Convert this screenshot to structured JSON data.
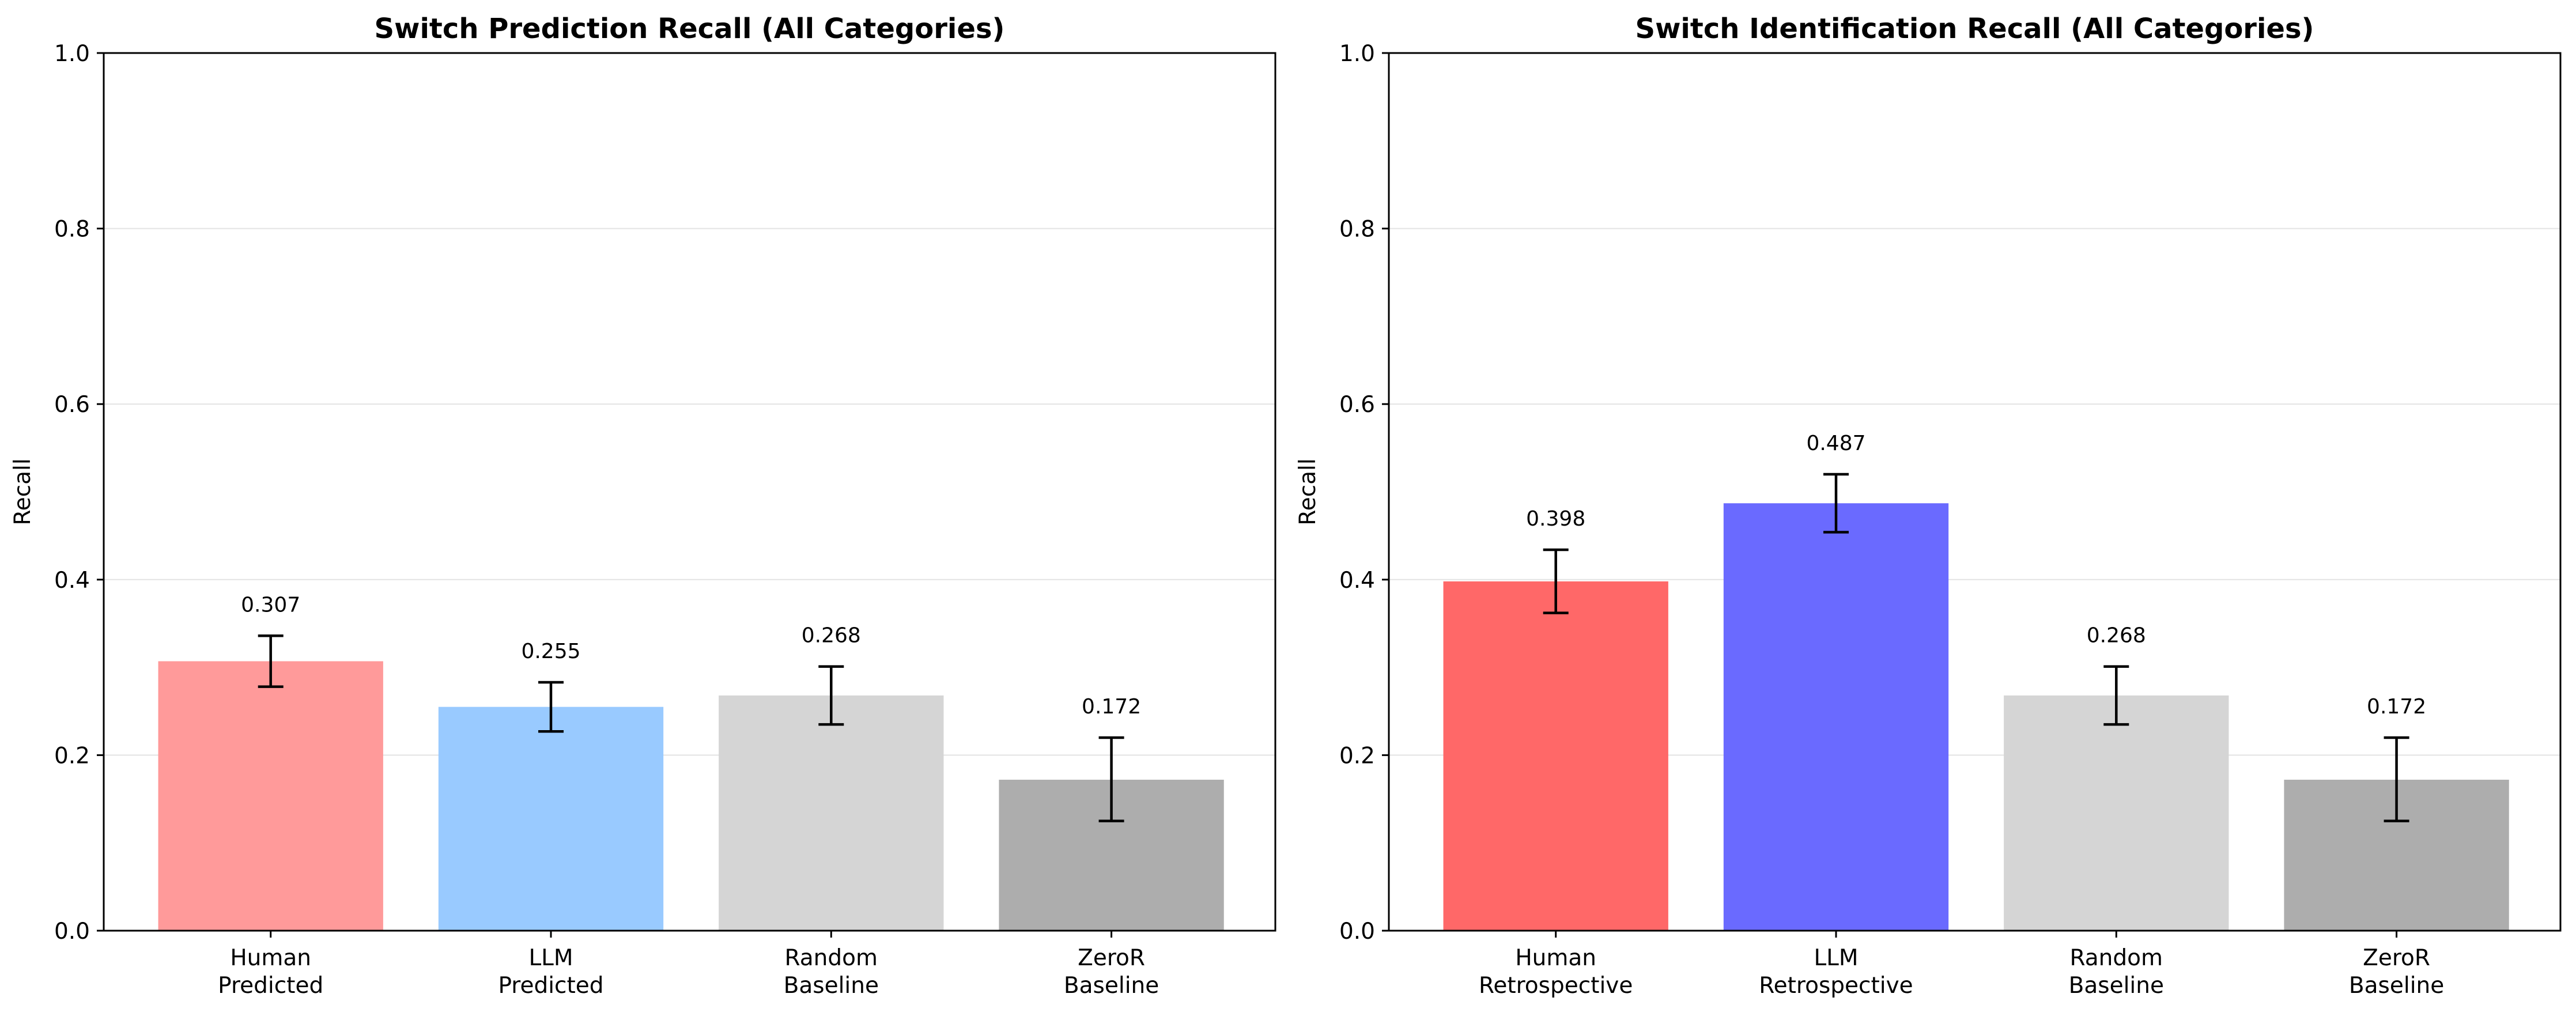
{
  "chart_data": [
    {
      "type": "bar",
      "title": "Switch Prediction Recall (All Categories)",
      "xlabel": "",
      "ylabel": "Recall",
      "ylim": [
        0,
        1.0
      ],
      "yticks": [
        "0.0",
        "0.2",
        "0.4",
        "0.6",
        "0.8",
        "1.0"
      ],
      "grid": "horizontal",
      "categories": [
        [
          "Human",
          "Predicted"
        ],
        [
          "LLM",
          "Predicted"
        ],
        [
          "Random",
          "Baseline"
        ],
        [
          "ZeroR",
          "Baseline"
        ]
      ],
      "values": [
        0.307,
        0.255,
        0.268,
        0.172
      ],
      "value_labels": [
        "0.307",
        "0.255",
        "0.268",
        "0.172"
      ],
      "error_low": [
        0.278,
        0.227,
        0.235,
        0.125
      ],
      "error_high": [
        0.336,
        0.283,
        0.301,
        0.22
      ],
      "colors": [
        "#ff9a9a",
        "#99caff",
        "#d5d5d5",
        "#adadad"
      ]
    },
    {
      "type": "bar",
      "title": "Switch Identification Recall (All Categories)",
      "xlabel": "",
      "ylabel": "Recall",
      "ylim": [
        0,
        1.0
      ],
      "yticks": [
        "0.0",
        "0.2",
        "0.4",
        "0.6",
        "0.8",
        "1.0"
      ],
      "grid": "horizontal",
      "categories": [
        [
          "Human",
          "Retrospective"
        ],
        [
          "LLM",
          "Retrospective"
        ],
        [
          "Random",
          "Baseline"
        ],
        [
          "ZeroR",
          "Baseline"
        ]
      ],
      "values": [
        0.398,
        0.487,
        0.268,
        0.172
      ],
      "value_labels": [
        "0.398",
        "0.487",
        "0.268",
        "0.172"
      ],
      "error_low": [
        0.362,
        0.454,
        0.235,
        0.125
      ],
      "error_high": [
        0.434,
        0.52,
        0.301,
        0.22
      ],
      "colors": [
        "#ff6868",
        "#6a6aff",
        "#d5d5d5",
        "#adadad"
      ]
    }
  ]
}
